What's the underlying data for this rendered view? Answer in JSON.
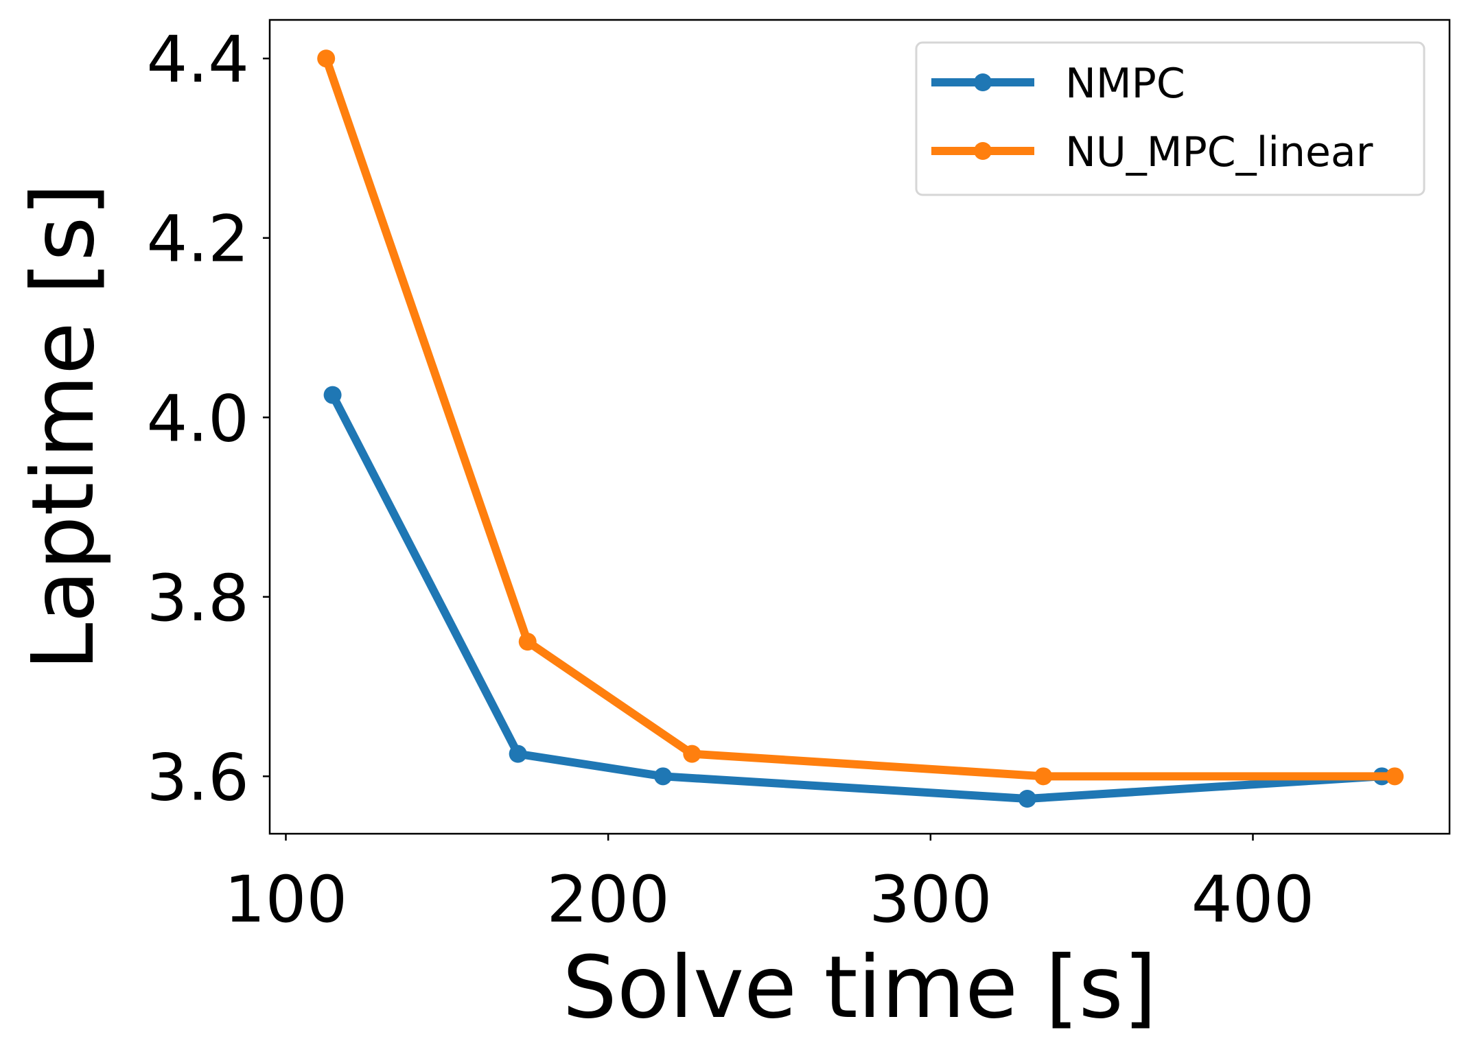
{
  "chart_data": {
    "type": "line",
    "title": "",
    "xlabel": "Solve time [s]",
    "ylabel": "Laptime [s]",
    "xlim": [
      95,
      461
    ],
    "ylim": [
      3.536,
      4.443
    ],
    "xticks": [
      100,
      200,
      300,
      400
    ],
    "xtick_labels": [
      "100",
      "200",
      "300",
      "400"
    ],
    "yticks": [
      3.6,
      3.8,
      4.0,
      4.2,
      4.4
    ],
    "ytick_labels": [
      "3.6",
      "3.8",
      "4.0",
      "4.2",
      "4.4"
    ],
    "grid": false,
    "legend_position": "top-right",
    "series": [
      {
        "name": "NMPC",
        "color": "#1f77b4",
        "marker": "circle",
        "x": [
          114.5,
          172,
          217,
          330,
          440
        ],
        "y": [
          4.025,
          3.625,
          3.6,
          3.575,
          3.6
        ]
      },
      {
        "name": "NU_MPC_linear",
        "color": "#ff7f0e",
        "marker": "circle",
        "x": [
          112.5,
          175,
          226,
          335,
          444
        ],
        "y": [
          4.4,
          3.75,
          3.625,
          3.6,
          3.6
        ]
      }
    ]
  }
}
